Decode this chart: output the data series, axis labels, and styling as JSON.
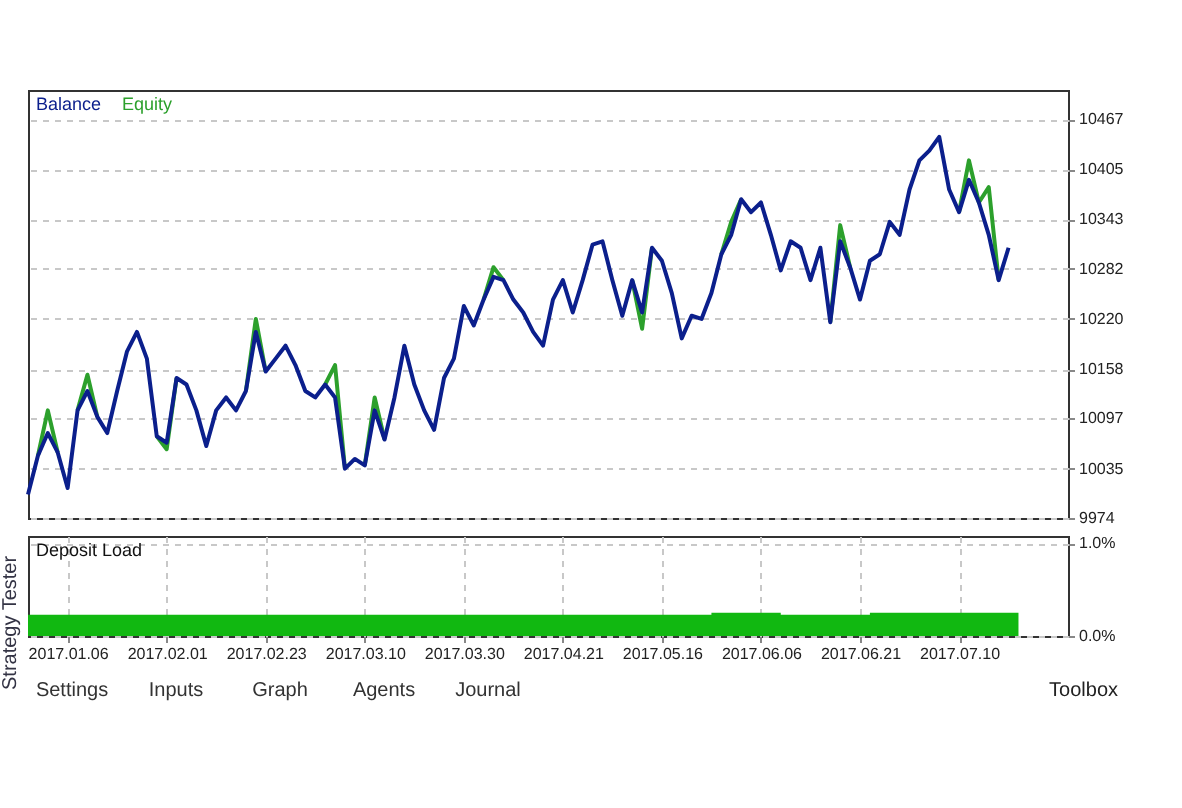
{
  "chart_data": [
    {
      "type": "line",
      "legend": "top left",
      "grid": true,
      "tick_labels": "y",
      "categories": [
        null,
        null,
        null,
        null,
        null,
        null,
        null,
        null,
        null,
        null,
        null,
        null,
        null,
        null,
        null,
        null,
        null,
        null,
        null,
        null,
        null,
        null,
        null,
        null,
        null,
        null,
        null,
        null,
        null,
        null,
        null,
        null,
        null,
        null,
        null,
        null,
        null,
        null,
        null,
        null,
        null,
        null,
        null,
        null,
        null,
        null,
        null,
        null,
        null,
        null,
        null,
        null,
        null,
        null,
        null,
        null,
        null,
        null,
        null,
        null,
        null,
        null,
        null,
        null,
        null,
        null,
        null,
        null,
        null,
        null,
        null,
        null,
        null,
        null,
        null,
        null,
        null,
        null,
        null,
        null,
        null,
        null,
        null,
        null,
        null,
        null,
        null,
        null,
        null,
        null,
        null,
        null,
        null,
        null,
        null,
        null,
        null,
        null,
        null,
        null,
        null,
        null,
        null,
        null,
        null,
        null
      ],
      "ylim": [
        9974,
        10503
      ],
      "yticks": [
        9974,
        10035,
        10097,
        10158,
        10220,
        10282,
        10343,
        10405,
        10467
      ],
      "series": [
        {
          "name": "Balance",
          "color": "#0b1f8c",
          "values": [
            10003,
            10051,
            10079,
            10055,
            10011,
            10107,
            10131,
            10099,
            10079,
            10131,
            10180,
            10204,
            10171,
            10075,
            10067,
            10147,
            10139,
            10107,
            10063,
            10107,
            10123,
            10107,
            10131,
            10204,
            10155,
            10171,
            10187,
            10163,
            10131,
            10123,
            10139,
            10123,
            10035,
            10047,
            10039,
            10107,
            10071,
            10123,
            10187,
            10139,
            10107,
            10083,
            10147,
            10171,
            10236,
            10212,
            10244,
            10272,
            10268,
            10244,
            10228,
            10204,
            10187,
            10244,
            10268,
            10228,
            10268,
            10312,
            10316,
            10268,
            10224,
            10268,
            10228,
            10308,
            10292,
            10252,
            10196,
            10224,
            10220,
            10252,
            10300,
            10324,
            10368,
            10352,
            10364,
            10324,
            10280,
            10316,
            10308,
            10268,
            10308,
            10216,
            10316,
            10284,
            10244,
            10292,
            10300,
            10340,
            10324,
            10380,
            10416,
            10428,
            10445,
            10380,
            10352,
            10392,
            10364,
            10324,
            10268,
            10308,
            null,
            null,
            null,
            null,
            null,
            null
          ]
        },
        {
          "name": "Equity",
          "color": "#2ca02c",
          "values": [
            null,
            10051,
            10107,
            10055,
            null,
            10107,
            10151,
            10099,
            null,
            null,
            null,
            null,
            null,
            10075,
            10059,
            10147,
            null,
            null,
            null,
            null,
            null,
            null,
            10131,
            10220,
            10155,
            null,
            null,
            null,
            null,
            null,
            10139,
            10163,
            10035,
            null,
            10039,
            10123,
            10071,
            null,
            null,
            null,
            null,
            null,
            null,
            null,
            null,
            null,
            10244,
            10284,
            10268,
            null,
            null,
            null,
            null,
            null,
            null,
            null,
            null,
            null,
            null,
            null,
            null,
            10268,
            10208,
            10308,
            null,
            null,
            null,
            null,
            null,
            null,
            10300,
            10340,
            10368,
            null,
            null,
            null,
            null,
            null,
            null,
            null,
            null,
            10216,
            10336,
            10284,
            null,
            null,
            null,
            null,
            null,
            null,
            null,
            null,
            null,
            null,
            10352,
            10416,
            10364,
            10383,
            10268,
            null,
            null,
            null,
            null,
            null,
            null,
            null
          ]
        }
      ]
    },
    {
      "type": "area",
      "title": "Deposit Load",
      "color": "#11b811",
      "line_style": "step",
      "grid": true,
      "categories": [
        null,
        null,
        null,
        null,
        "2017.01.06",
        null,
        null,
        null,
        null,
        null,
        null,
        null,
        null,
        null,
        "2017.02.01",
        null,
        null,
        null,
        null,
        null,
        null,
        null,
        null,
        null,
        "2017.02.23",
        null,
        null,
        null,
        null,
        null,
        null,
        null,
        null,
        null,
        "2017.03.10",
        null,
        null,
        null,
        null,
        null,
        null,
        null,
        null,
        null,
        "2017.03.30",
        null,
        null,
        null,
        null,
        null,
        null,
        null,
        null,
        null,
        "2017.04.21",
        null,
        null,
        null,
        null,
        null,
        null,
        null,
        null,
        null,
        "2017.05.16",
        null,
        null,
        null,
        null,
        null,
        null,
        null,
        null,
        null,
        "2017.06.06",
        null,
        null,
        null,
        null,
        null,
        null,
        null,
        null,
        null,
        "2017.06.21",
        null,
        null,
        null,
        null,
        null,
        null,
        null,
        null,
        null,
        "2017.07.10",
        null,
        null,
        null,
        null,
        null,
        null,
        null,
        null,
        null,
        null,
        null
      ],
      "ylim": [
        0,
        1.08
      ],
      "yticks": [
        {
          "value": 0,
          "label": "0.0%"
        },
        {
          "value": 1,
          "label": "1.0%"
        }
      ],
      "values": [
        0.23,
        0.23,
        0.23,
        0.23,
        0.23,
        0.23,
        0.23,
        0.23,
        0.23,
        0.23,
        0.23,
        0.23,
        0.23,
        0.23,
        0.23,
        0.23,
        0.23,
        0.23,
        0.23,
        0.23,
        0.23,
        0.23,
        0.23,
        0.23,
        0.23,
        0.23,
        0.23,
        0.23,
        0.23,
        0.23,
        0.23,
        0.23,
        0.23,
        0.23,
        0.23,
        0.23,
        0.23,
        0.23,
        0.23,
        0.23,
        0.23,
        0.23,
        0.23,
        0.23,
        0.23,
        0.23,
        0.23,
        0.23,
        0.23,
        0.23,
        0.23,
        0.23,
        0.23,
        0.23,
        0.23,
        0.23,
        0.23,
        0.23,
        0.23,
        0.23,
        0.23,
        0.23,
        0.23,
        0.23,
        0.23,
        0.23,
        0.23,
        0.23,
        0.23,
        0.25,
        0.25,
        0.25,
        0.25,
        0.25,
        0.25,
        0.25,
        0.23,
        0.23,
        0.23,
        0.23,
        0.23,
        0.23,
        0.23,
        0.23,
        0.23,
        0.25,
        0.25,
        0.25,
        0.25,
        0.25,
        0.25,
        0.25,
        0.25,
        0.25,
        0.25,
        0.25,
        0.25,
        0.25,
        0.25,
        0.25,
        0.25,
        null,
        null,
        null,
        null,
        null
      ],
      "annotations": [
        "Strategy Tester",
        "Settings",
        "Inputs",
        "Graph",
        "Agents",
        "Journal",
        "Toolbox"
      ]
    }
  ]
}
